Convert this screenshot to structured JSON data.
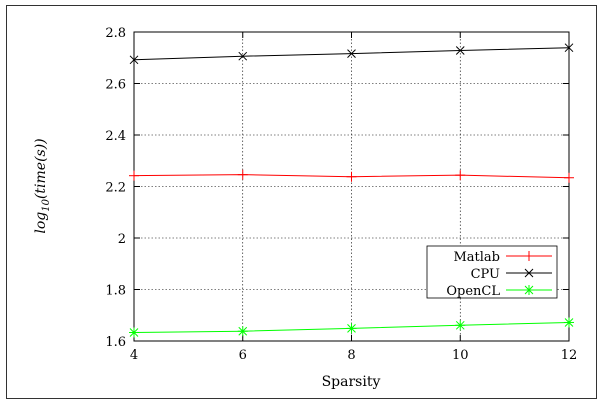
{
  "chart_data": {
    "type": "line",
    "title": "",
    "xlabel": "Sparsity",
    "ylabel_parts": {
      "pre": "log",
      "sub": "10",
      "post": "(time(s))"
    },
    "xlim": [
      4,
      12
    ],
    "ylim": [
      1.6,
      2.8
    ],
    "x_ticks": [
      4,
      6,
      8,
      10,
      12
    ],
    "y_ticks": [
      1.6,
      1.8,
      2,
      2.2,
      2.4,
      2.6,
      2.8
    ],
    "x_tick_labels": [
      "4",
      "6",
      "8",
      "10",
      "12"
    ],
    "y_tick_labels": [
      "1.6",
      "1.8",
      "2",
      "2.2",
      "2.4",
      "2.6",
      "2.8"
    ],
    "grid": true,
    "legend_position": "lower-right",
    "x": [
      4,
      6,
      8,
      10,
      12
    ],
    "series": [
      {
        "name": "Matlab",
        "values": [
          2.242,
          2.246,
          2.238,
          2.244,
          2.234
        ],
        "color": "#ff0000",
        "marker": "plus"
      },
      {
        "name": "CPU",
        "values": [
          2.692,
          2.706,
          2.716,
          2.728,
          2.739
        ],
        "color": "#000000",
        "marker": "cross"
      },
      {
        "name": "OpenCL",
        "values": [
          1.633,
          1.638,
          1.649,
          1.661,
          1.672
        ],
        "color": "#00ff00",
        "marker": "star"
      }
    ]
  }
}
